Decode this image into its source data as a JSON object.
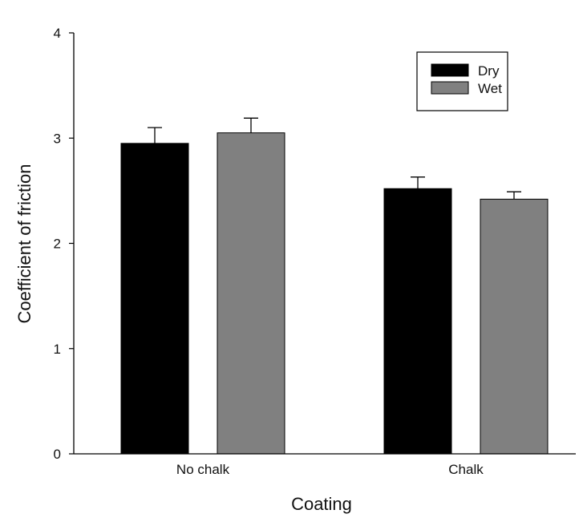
{
  "chart_data": {
    "type": "bar",
    "categories": [
      "No chalk",
      "Chalk"
    ],
    "series": [
      {
        "name": "Dry",
        "values": [
          2.95,
          2.52
        ],
        "errors": [
          0.15,
          0.11
        ],
        "color": "#000000"
      },
      {
        "name": "Wet",
        "values": [
          3.05,
          2.42
        ],
        "errors": [
          0.14,
          0.07
        ],
        "color": "#808080"
      }
    ],
    "xlabel": "Coating",
    "ylabel": "Coefficient of friction",
    "ylim": [
      0,
      4
    ],
    "yticks": [
      0,
      1,
      2,
      3,
      4
    ],
    "legend_position": "top-right",
    "grid": false
  }
}
